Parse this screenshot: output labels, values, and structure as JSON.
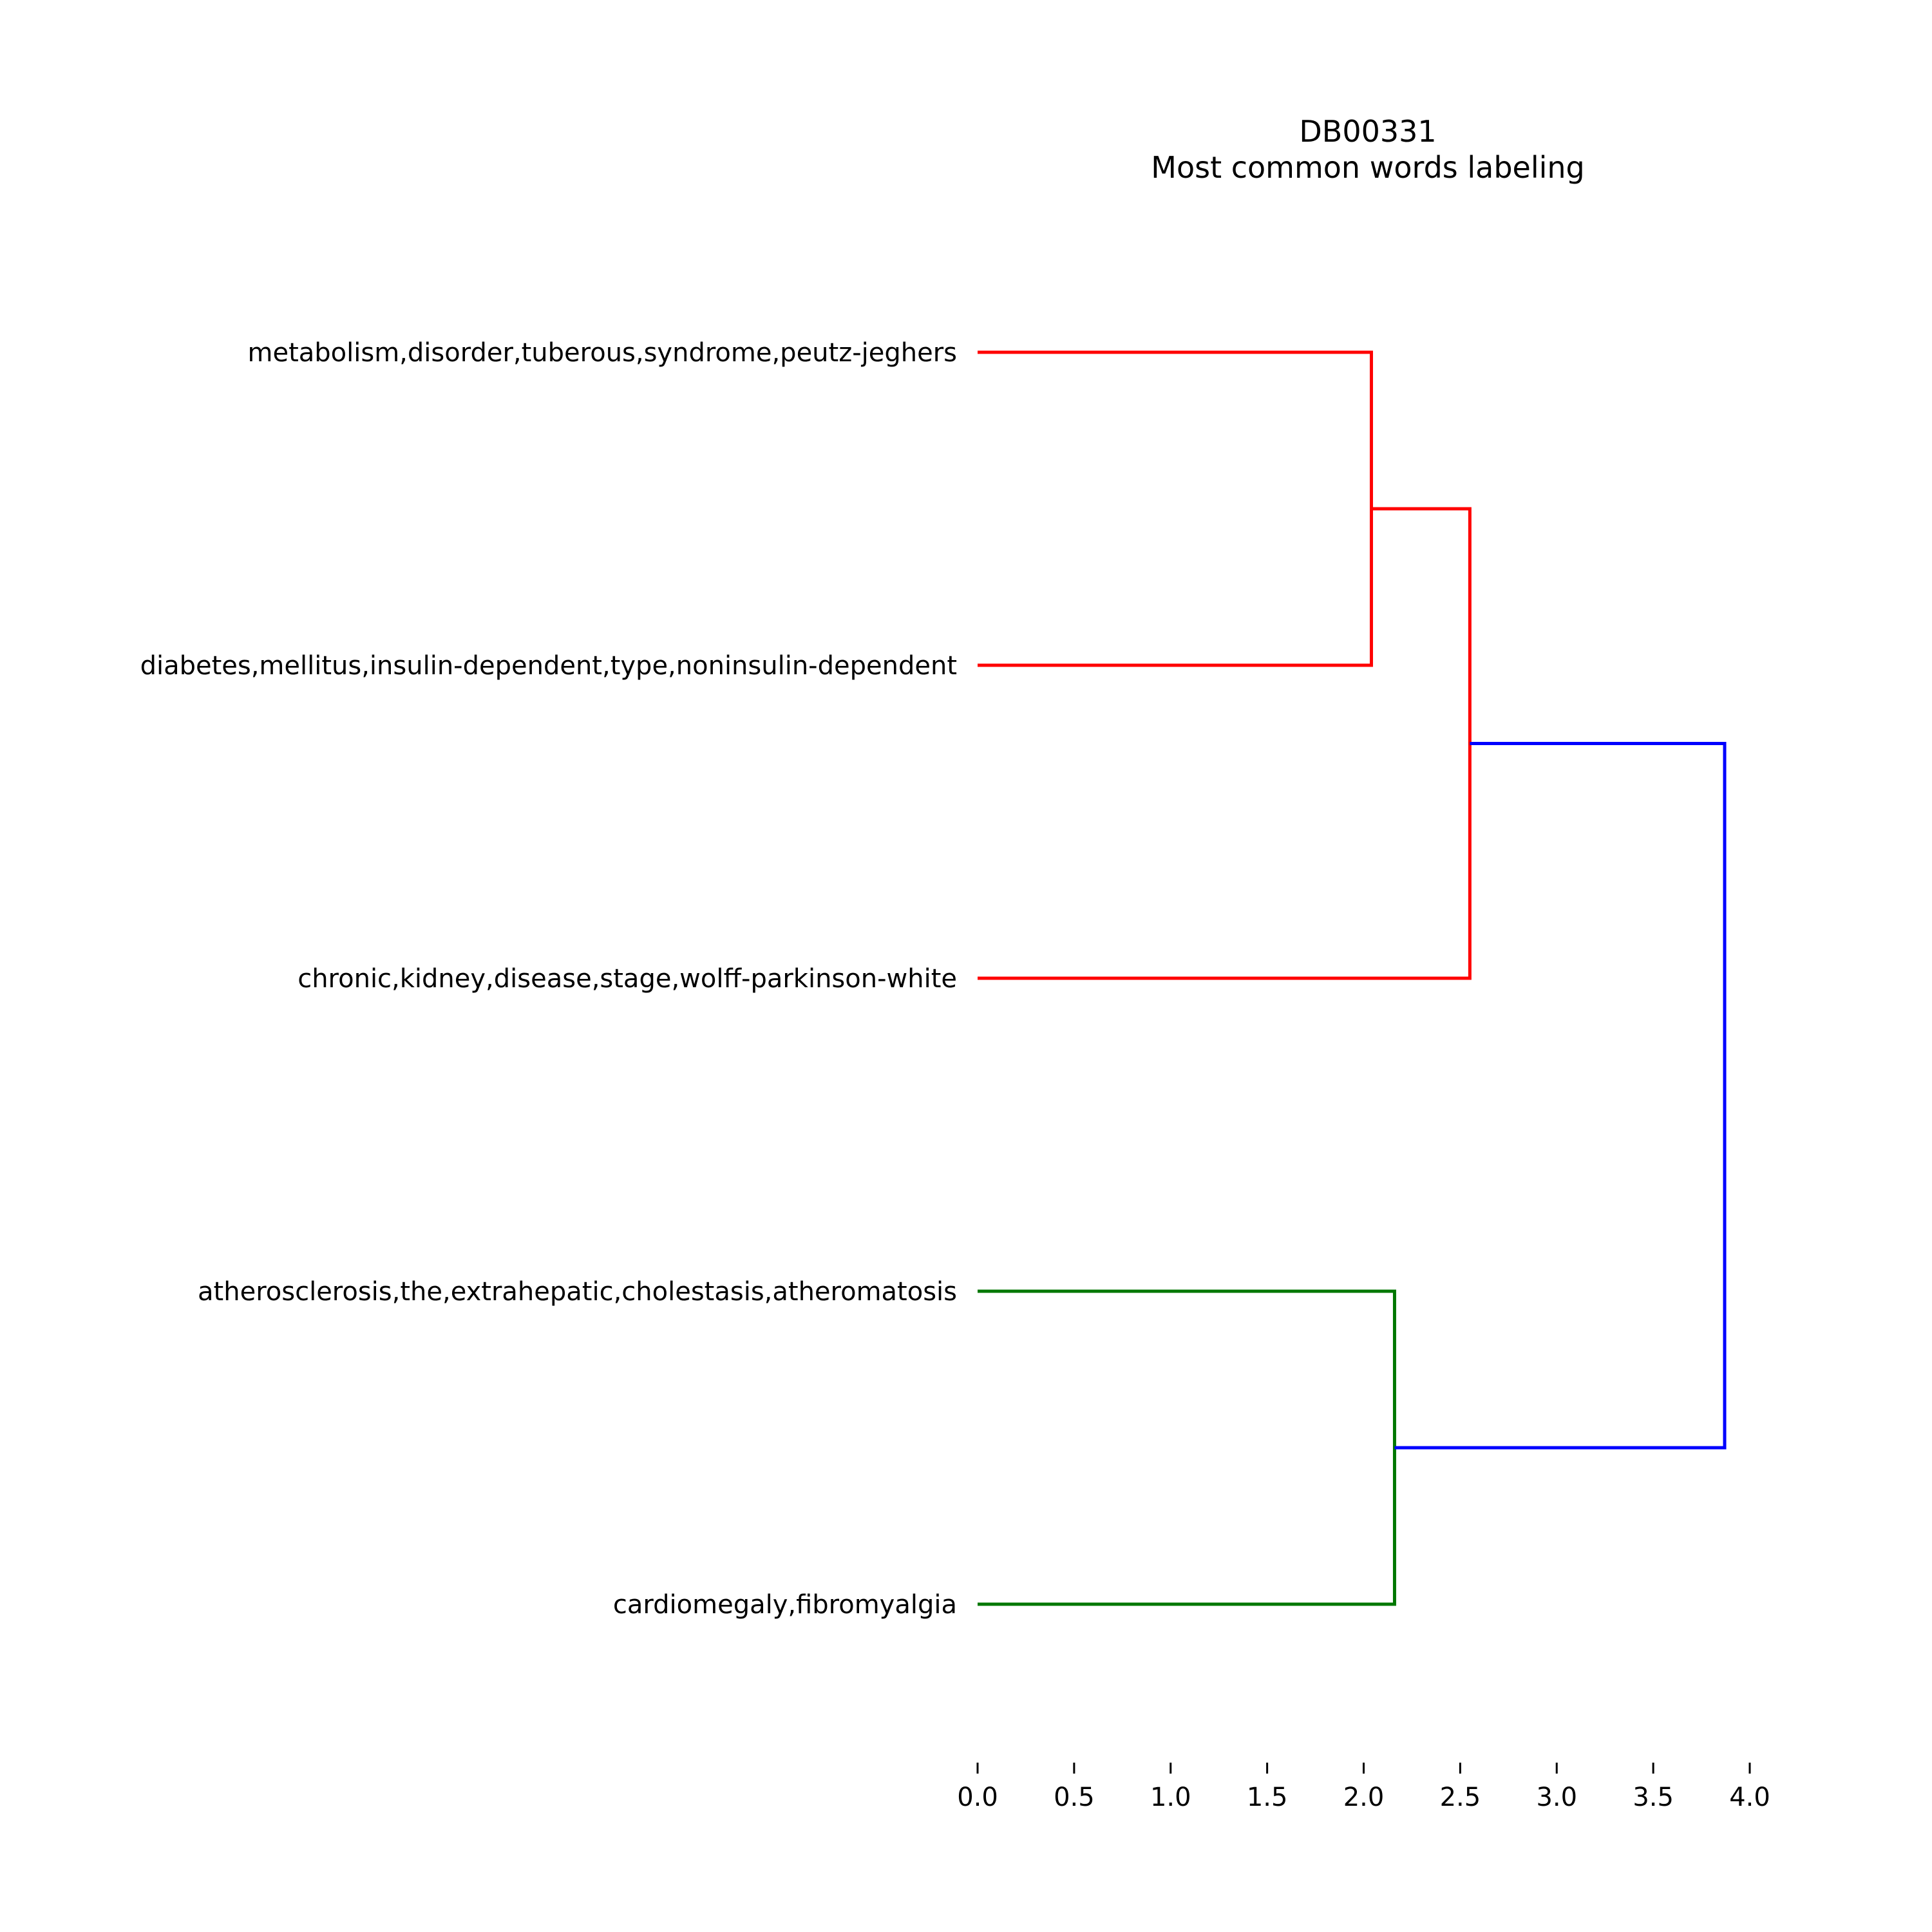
{
  "chart_data": {
    "type": "dendrogram",
    "title": "DB00331",
    "subtitle": "Most common words labeling",
    "orientation": "horizontal",
    "xlim": [
      0,
      4.0
    ],
    "xticks": [
      "0.0",
      "0.5",
      "1.0",
      "1.5",
      "2.0",
      "2.5",
      "3.0",
      "3.5",
      "4.0"
    ],
    "leaves": [
      "metabolism,disorder,tuberous,syndrome,peutz-jeghers",
      "diabetes,mellitus,insulin-dependent,type,noninsulin-dependent",
      "chronic,kidney,disease,stage,wolff-parkinson-white",
      "atherosclerosis,the,extrahepatic,cholestasis,atheromatosis",
      "cardiomegaly,fibromyalgia"
    ],
    "merges": [
      {
        "left": "leaf-0",
        "right": "leaf-1",
        "distance": 2.04,
        "color": "#ff0000"
      },
      {
        "left": "merge-0",
        "right": "leaf-2",
        "distance": 2.55,
        "color": "#ff0000"
      },
      {
        "left": "leaf-3",
        "right": "leaf-4",
        "distance": 2.16,
        "color": "#007700"
      },
      {
        "left": "merge-1",
        "right": "merge-2",
        "distance": 3.87,
        "color": "#0000ff"
      }
    ],
    "grid": false,
    "colors": {
      "cluster_1": "#ff0000",
      "cluster_2": "#007700",
      "above_threshold": "#0000ff"
    }
  }
}
